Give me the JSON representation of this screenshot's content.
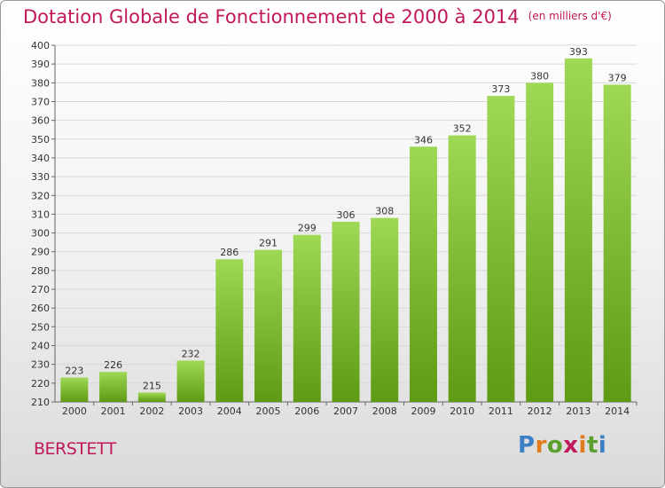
{
  "title": "Dotation Globale de Fonctionnement de 2000 à 2014",
  "unit_note": "(en milliers d'€)",
  "city": "BERSTETT",
  "logo": {
    "text": "Proxiti",
    "icon": "proxiti-logo"
  },
  "colors": {
    "title": "#c0185a",
    "bar_top": "#9ed854",
    "bar_bottom": "#5e9a14",
    "grid": "#d8d8d8"
  },
  "chart_data": {
    "type": "bar",
    "categories": [
      "2000",
      "2001",
      "2002",
      "2003",
      "2004",
      "2005",
      "2006",
      "2007",
      "2008",
      "2009",
      "2010",
      "2011",
      "2012",
      "2013",
      "2014"
    ],
    "values": [
      223,
      226,
      215,
      232,
      286,
      291,
      299,
      306,
      308,
      346,
      352,
      373,
      380,
      393,
      379
    ],
    "ylim": [
      210,
      400
    ],
    "ytick_step": 10,
    "grid": true,
    "xlabel": "",
    "ylabel": ""
  }
}
